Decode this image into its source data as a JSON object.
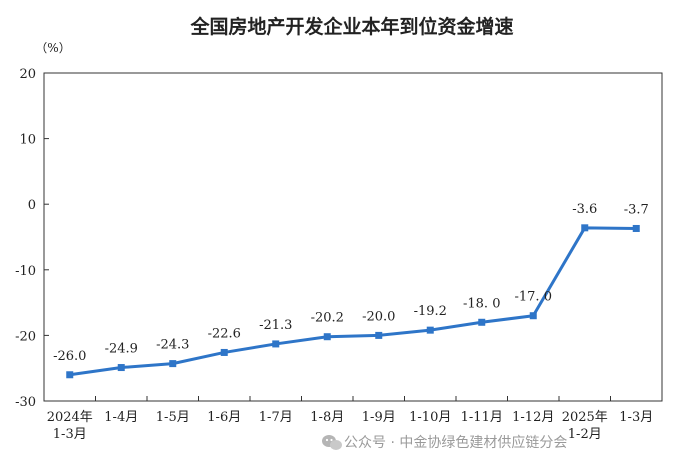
{
  "chart_data": {
    "type": "line",
    "title": "全国房地产开发企业本年到位资金增速",
    "ylabel": "（%）",
    "xlabel": "",
    "categories": [
      [
        "2024年",
        "1-3月"
      ],
      [
        "1-4月"
      ],
      [
        "1-5月"
      ],
      [
        "1-6月"
      ],
      [
        "1-7月"
      ],
      [
        "1-8月"
      ],
      [
        "1-9月"
      ],
      [
        "1-10月"
      ],
      [
        "1-11月"
      ],
      [
        "1-12月"
      ],
      [
        "2025年",
        "1-2月"
      ],
      [
        "1-3月"
      ]
    ],
    "series": [
      {
        "values": [
          -26.0,
          -24.9,
          -24.3,
          -22.6,
          -21.3,
          -20.2,
          -20.0,
          -19.2,
          -18.0,
          -17.0,
          -3.6,
          -3.7
        ],
        "labels": [
          "-26.0",
          "-24.9",
          "-24.3",
          "-22.6",
          "-21.3",
          "-20.2",
          "-20.0",
          "-19.2",
          "-18. 0",
          "-17. 0",
          "-3.6",
          "-3.7"
        ],
        "color": "#2e75c8"
      }
    ],
    "ylim": [
      -30,
      20
    ],
    "yticks": [
      20,
      10,
      0,
      -10,
      -20,
      -30
    ],
    "grid": false,
    "legend": "none"
  },
  "watermark": {
    "icon": "wechat-icon",
    "text": "公众号 · 中金协绿色建材供应链分会"
  }
}
